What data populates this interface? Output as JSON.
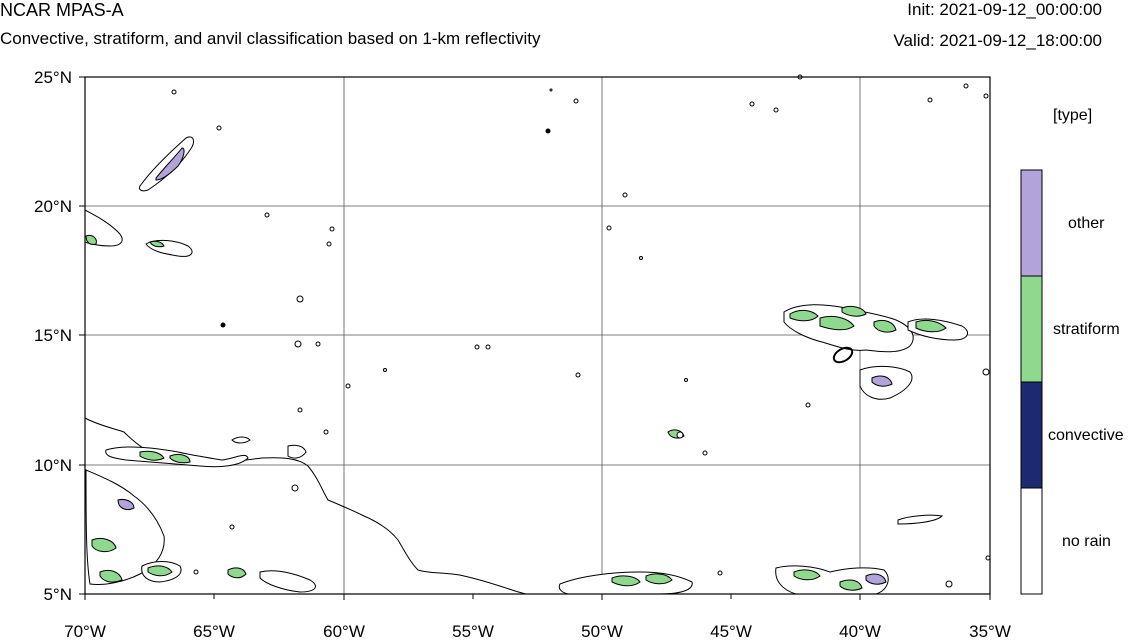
{
  "header": {
    "model": "NCAR MPAS-A",
    "description": "Convective, stratiform, and anvil classification based on 1-km reflectivity",
    "init_label": "Init:",
    "init": "2021-09-12_00:00:00",
    "valid_label": "Valid:",
    "valid": "2021-09-12_18:00:00"
  },
  "map": {
    "lon_range": [
      -70,
      -35
    ],
    "lat_range": [
      5,
      25
    ],
    "lon_ticks": [
      "70°W",
      "65°W",
      "60°W",
      "55°W",
      "50°W",
      "45°W",
      "40°W",
      "35°W"
    ],
    "lat_ticks": [
      "25°N",
      "20°N",
      "15°N",
      "10°N",
      "5°N"
    ],
    "gridlines": true
  },
  "legend": {
    "title": "[type]",
    "items": [
      {
        "label": "other",
        "color": "#b3a3db"
      },
      {
        "label": "stratiform",
        "color": "#8fd98f"
      },
      {
        "label": "convective",
        "color": "#1c2a73"
      },
      {
        "label": "no rain",
        "color": "#ffffff"
      }
    ]
  },
  "colors": {
    "other": "#b3a3db",
    "stratiform": "#8fd98f",
    "convective": "#1c2a73",
    "coastline": "#000000",
    "grid": "#555555"
  }
}
